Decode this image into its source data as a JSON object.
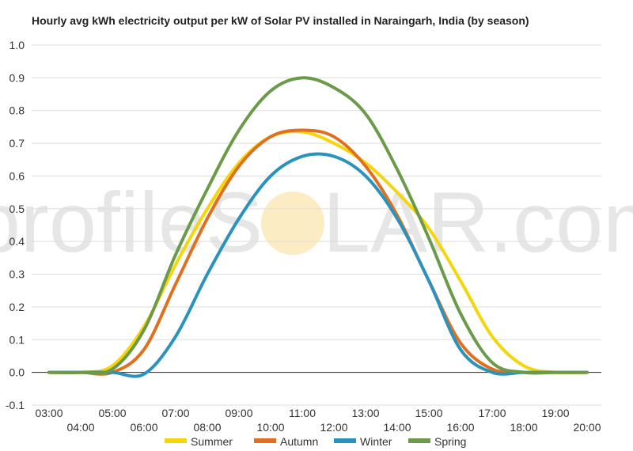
{
  "page": {
    "title": "Hourly avg kWh electricity output per kW of Solar PV installed in Naraingarh, India (by season)",
    "watermark_left": "profileS",
    "watermark_right": "LAR.com"
  },
  "chart_data": {
    "type": "line",
    "title": "Hourly avg kWh electricity output per kW of Solar PV installed in Naraingarh, India (by season)",
    "xlabel": "",
    "ylabel": "",
    "x": [
      "03:00",
      "04:00",
      "05:00",
      "06:00",
      "07:00",
      "08:00",
      "09:00",
      "10:00",
      "11:00",
      "12:00",
      "13:00",
      "14:00",
      "15:00",
      "16:00",
      "17:00",
      "18:00",
      "19:00",
      "20:00"
    ],
    "x_tick_labels": [
      "03:00",
      "04:00",
      "05:00",
      "06:00",
      "07:00",
      "08:00",
      "09:00",
      "10:00",
      "11:00",
      "12:00",
      "13:00",
      "14:00",
      "15:00",
      "16:00",
      "17:00",
      "18:00",
      "19:00",
      "20:00"
    ],
    "ylim": [
      -0.1,
      1.0
    ],
    "y_ticks": [
      "1.0",
      "0.9",
      "0.8",
      "0.7",
      "0.6",
      "0.5",
      "0.4",
      "0.3",
      "0.2",
      "0.1",
      "0.0",
      "-0.1"
    ],
    "grid": true,
    "legend_position": "bottom",
    "colors": {
      "Summer": "#f5d60a",
      "Autumn": "#e07020",
      "Winter": "#2a93bd",
      "Spring": "#6b9a4a",
      "grid": "#dddddd",
      "zero_line": "#222222",
      "watermark_sun": "#fbecc4"
    },
    "series": [
      {
        "name": "Summer",
        "values": [
          0.0,
          0.0,
          0.02,
          0.14,
          0.33,
          0.5,
          0.64,
          0.72,
          0.735,
          0.7,
          0.64,
          0.55,
          0.44,
          0.28,
          0.11,
          0.02,
          0.0,
          0.0
        ]
      },
      {
        "name": "Autumn",
        "values": [
          0.0,
          0.0,
          0.0,
          0.07,
          0.27,
          0.47,
          0.63,
          0.72,
          0.74,
          0.72,
          0.63,
          0.48,
          0.28,
          0.09,
          0.01,
          0.0,
          0.0,
          0.0
        ]
      },
      {
        "name": "Winter",
        "values": [
          0.0,
          0.0,
          0.0,
          -0.005,
          0.11,
          0.3,
          0.47,
          0.6,
          0.66,
          0.66,
          0.6,
          0.47,
          0.28,
          0.07,
          0.0,
          0.0,
          0.0,
          0.0
        ]
      },
      {
        "name": "Spring",
        "values": [
          0.0,
          0.0,
          0.01,
          0.13,
          0.36,
          0.56,
          0.74,
          0.86,
          0.9,
          0.87,
          0.79,
          0.62,
          0.41,
          0.18,
          0.03,
          0.0,
          0.0,
          0.0
        ]
      }
    ]
  }
}
